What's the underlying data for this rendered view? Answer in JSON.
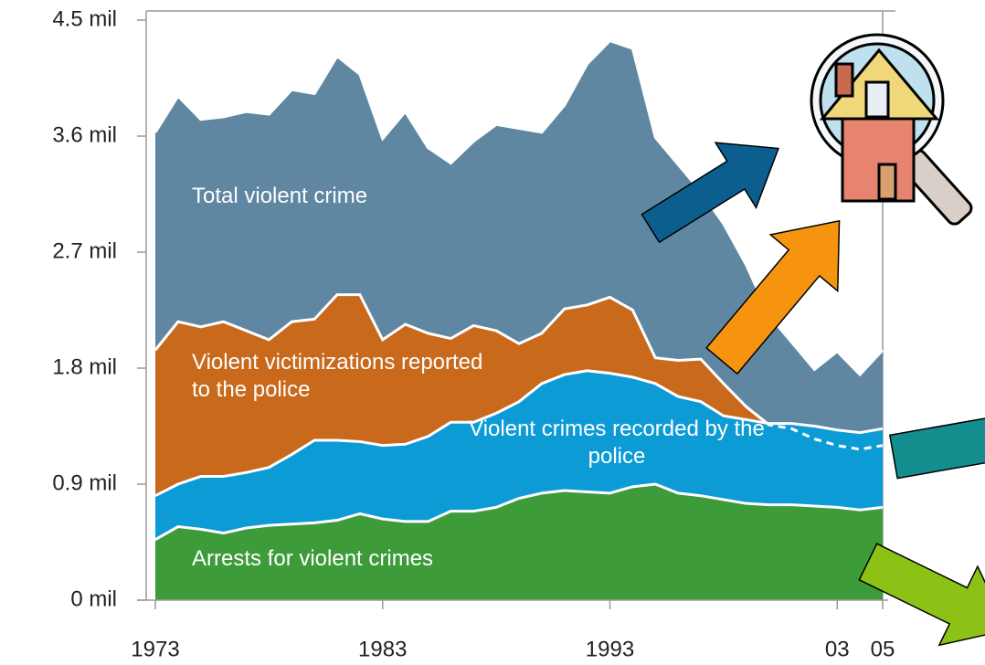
{
  "chart_data": {
    "type": "area",
    "x": [
      1973,
      1974,
      1975,
      1976,
      1977,
      1978,
      1979,
      1980,
      1981,
      1982,
      1983,
      1984,
      1985,
      1986,
      1987,
      1988,
      1989,
      1990,
      1991,
      1992,
      1993,
      1994,
      1995,
      1996,
      1997,
      1998,
      1999,
      2000,
      2001,
      2002,
      2003,
      2004,
      2005
    ],
    "series": [
      {
        "name": "Total violent crime",
        "color": "#5f87a2",
        "values": [
          3.63,
          3.91,
          3.73,
          3.75,
          3.79,
          3.77,
          3.96,
          3.93,
          4.22,
          4.08,
          3.58,
          3.79,
          3.51,
          3.39,
          3.56,
          3.69,
          3.66,
          3.63,
          3.84,
          4.16,
          4.34,
          4.28,
          3.59,
          3.38,
          3.17,
          2.92,
          2.6,
          2.21,
          2.0,
          1.79,
          1.93,
          1.75,
          1.94
        ]
      },
      {
        "name": "Violent victimizations reported to the police",
        "color": "#c8691c",
        "values": [
          1.94,
          2.16,
          2.12,
          2.16,
          2.09,
          2.02,
          2.16,
          2.18,
          2.37,
          2.37,
          2.02,
          2.14,
          2.07,
          2.03,
          2.13,
          2.09,
          1.99,
          2.07,
          2.26,
          2.29,
          2.35,
          2.25,
          1.88,
          1.86,
          1.87,
          1.68,
          1.5,
          1.36,
          1.33,
          1.25,
          1.2,
          1.17,
          1.2
        ]
      },
      {
        "name": "Violent crimes recorded by the police",
        "color": "#0d9bd6",
        "values": [
          0.81,
          0.9,
          0.96,
          0.96,
          0.99,
          1.03,
          1.13,
          1.24,
          1.24,
          1.23,
          1.2,
          1.21,
          1.27,
          1.38,
          1.38,
          1.45,
          1.54,
          1.68,
          1.75,
          1.78,
          1.76,
          1.73,
          1.68,
          1.58,
          1.54,
          1.43,
          1.4,
          1.37,
          1.37,
          1.35,
          1.32,
          1.3,
          1.33
        ]
      },
      {
        "name": "Arrests for violent crimes",
        "color": "#3d9b3a",
        "values": [
          0.47,
          0.57,
          0.55,
          0.52,
          0.56,
          0.58,
          0.59,
          0.6,
          0.62,
          0.67,
          0.63,
          0.61,
          0.61,
          0.69,
          0.69,
          0.72,
          0.79,
          0.83,
          0.85,
          0.84,
          0.83,
          0.88,
          0.9,
          0.83,
          0.81,
          0.78,
          0.75,
          0.74,
          0.74,
          0.73,
          0.72,
          0.7,
          0.72
        ]
      }
    ],
    "xlim": [
      1973,
      2005
    ],
    "xticks": [
      1973,
      1983,
      1993,
      {
        "value": 2003,
        "label": "03"
      },
      {
        "value": 2005,
        "label": "05"
      }
    ],
    "ylim": [
      0,
      4.5
    ],
    "yticks": [
      {
        "value": 0,
        "label": "0 mil"
      },
      {
        "value": 0.9,
        "label": "0.9 mil"
      },
      {
        "value": 1.8,
        "label": "1.8 mil"
      },
      {
        "value": 2.7,
        "label": "2.7 mil"
      },
      {
        "value": 3.6,
        "label": "3.6 mil"
      },
      {
        "value": 4.5,
        "label": "4.5 mil"
      }
    ]
  }
}
